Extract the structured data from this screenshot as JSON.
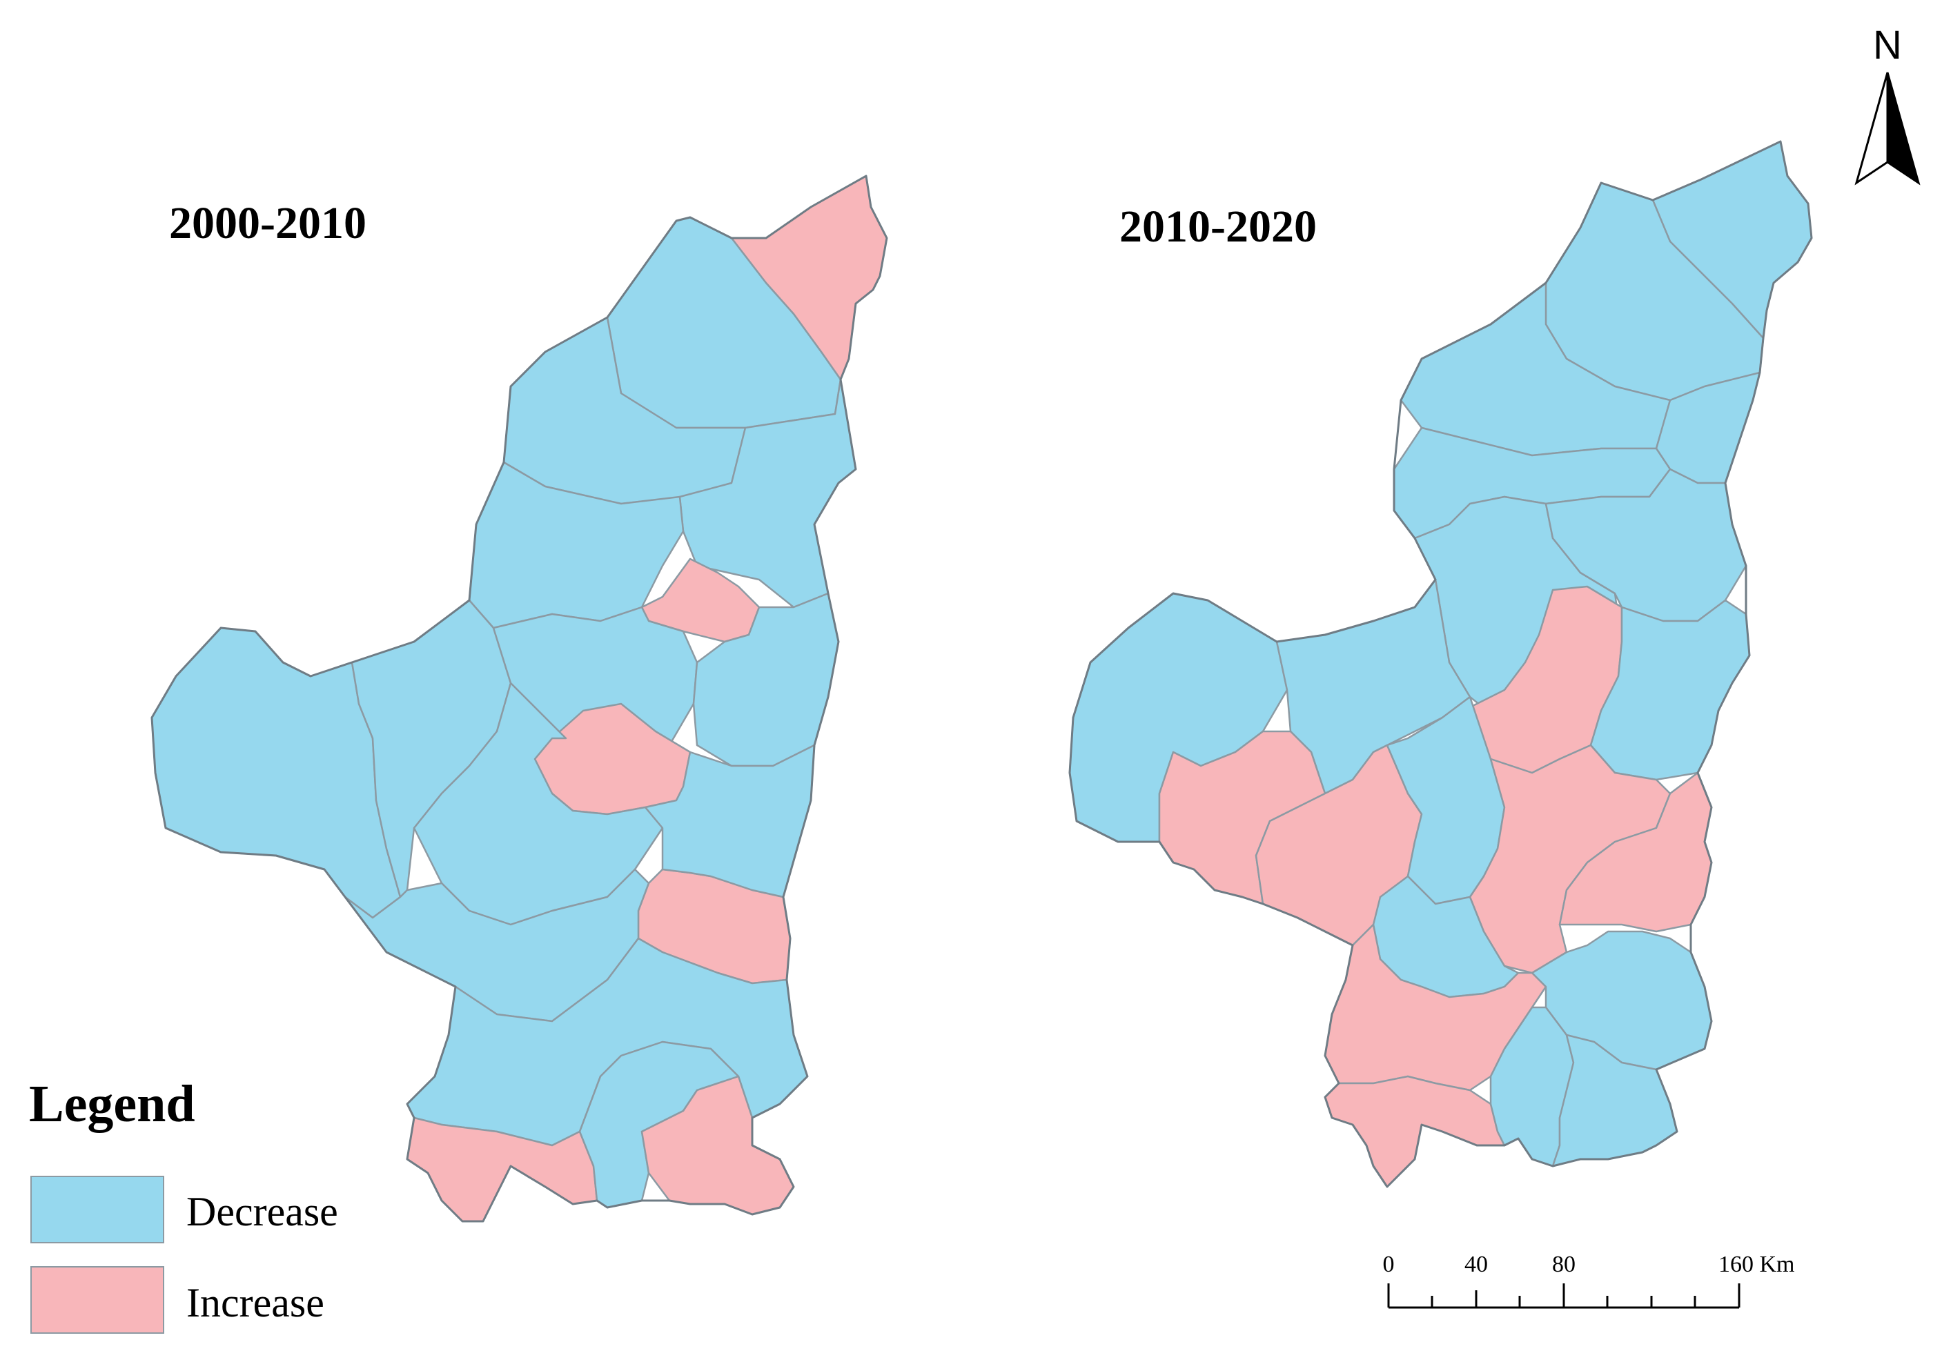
{
  "maps": [
    {
      "title": "2000-2010",
      "regions": [
        {
          "id": "a-ne-tip",
          "change": "Increase"
        },
        {
          "id": "a-north-1",
          "change": "Decrease"
        },
        {
          "id": "a-north-2",
          "change": "Decrease"
        },
        {
          "id": "a-mid-north",
          "change": "Decrease"
        },
        {
          "id": "a-east-upper",
          "change": "Decrease"
        },
        {
          "id": "a-city-1",
          "change": "Increase"
        },
        {
          "id": "a-west-lobe",
          "change": "Decrease"
        },
        {
          "id": "a-west-2",
          "change": "Decrease"
        },
        {
          "id": "a-center-1",
          "change": "Decrease"
        },
        {
          "id": "a-center-2",
          "change": "Increase"
        },
        {
          "id": "a-center-3",
          "change": "Decrease"
        },
        {
          "id": "a-east-mid",
          "change": "Decrease"
        },
        {
          "id": "a-east-2",
          "change": "Increase"
        },
        {
          "id": "a-south-1",
          "change": "Decrease"
        },
        {
          "id": "a-south-2",
          "change": "Decrease"
        },
        {
          "id": "a-south-3",
          "change": "Decrease"
        },
        {
          "id": "a-sw",
          "change": "Increase"
        },
        {
          "id": "a-s-center",
          "change": "Decrease"
        },
        {
          "id": "a-se",
          "change": "Increase"
        }
      ]
    },
    {
      "title": "2010-2020",
      "regions": [
        {
          "id": "b-ne-tip",
          "change": "Decrease"
        },
        {
          "id": "b-north-1",
          "change": "Decrease"
        },
        {
          "id": "b-north-2",
          "change": "Decrease"
        },
        {
          "id": "b-north-3",
          "change": "Decrease"
        },
        {
          "id": "b-mid-1",
          "change": "Decrease"
        },
        {
          "id": "b-mid-2",
          "change": "Decrease"
        },
        {
          "id": "b-east-upper",
          "change": "Decrease"
        },
        {
          "id": "b-west-lobe",
          "change": "Decrease"
        },
        {
          "id": "b-west-2",
          "change": "Decrease"
        },
        {
          "id": "b-center-1",
          "change": "Increase"
        },
        {
          "id": "b-east-mid",
          "change": "Decrease"
        },
        {
          "id": "b-sw-1",
          "change": "Increase"
        },
        {
          "id": "b-sw-2",
          "change": "Increase"
        },
        {
          "id": "b-center-2",
          "change": "Decrease"
        },
        {
          "id": "b-center-3",
          "change": "Increase"
        },
        {
          "id": "b-east-lower",
          "change": "Increase"
        },
        {
          "id": "b-center-4",
          "change": "Decrease"
        },
        {
          "id": "b-south-1",
          "change": "Increase"
        },
        {
          "id": "b-south-2",
          "change": "Increase"
        },
        {
          "id": "b-se-1",
          "change": "Decrease"
        },
        {
          "id": "b-se-2",
          "change": "Decrease"
        },
        {
          "id": "b-se-3",
          "change": "Decrease"
        }
      ]
    }
  ],
  "legend": {
    "title": "Legend",
    "items": [
      {
        "label": "Decrease",
        "color": "#96d8ee"
      },
      {
        "label": "Increase",
        "color": "#f8b6ba"
      }
    ]
  },
  "scale_bar": {
    "ticks": [
      "0",
      "40",
      "80",
      "160 Km"
    ]
  },
  "north_arrow": {
    "label": "N",
    "icon": "north-arrow-icon"
  }
}
